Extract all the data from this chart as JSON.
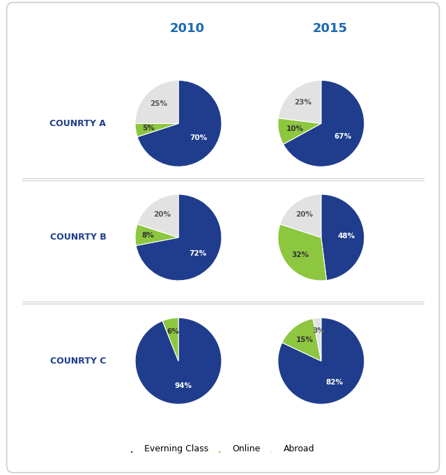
{
  "title_2010": "2010",
  "title_2015": "2015",
  "country_labels": [
    "COUNRTY A",
    "COUNRTY B",
    "COUNRTY C"
  ],
  "colors": {
    "evening": "#1f3d8c",
    "online": "#8dc63f",
    "abroad": "#e2e2e2"
  },
  "pies": {
    "A_2010": [
      70,
      5,
      25
    ],
    "A_2015": [
      67,
      10,
      23
    ],
    "B_2010": [
      72,
      8,
      20
    ],
    "B_2015": [
      48,
      32,
      20
    ],
    "C_2010": [
      94,
      6,
      0
    ],
    "C_2015": [
      82,
      15,
      3
    ]
  },
  "header_color": "#1a6ab0",
  "country_label_color": "#1f3d8c",
  "legend_labels": [
    "Everning Class",
    "Online",
    "Abroad"
  ],
  "header_fontsize": 13,
  "country_fontsize": 9,
  "label_fontsize": 7.5
}
